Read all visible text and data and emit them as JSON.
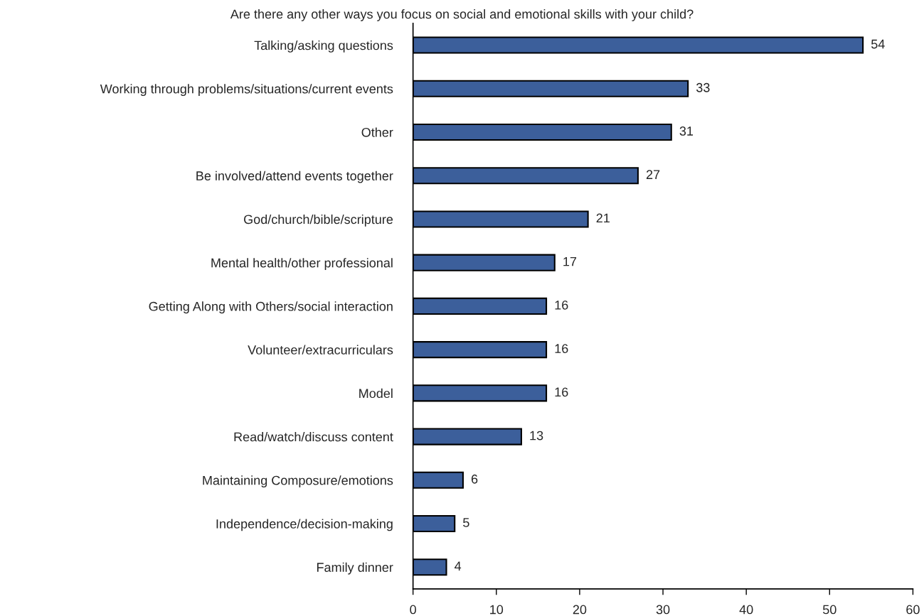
{
  "chart_data": {
    "type": "bar",
    "orientation": "horizontal",
    "title": "Are there any other ways you focus on social and emotional skills with your child?",
    "categories": [
      "Talking/asking questions",
      "Working through problems/situations/current events",
      "Other",
      "Be involved/attend events together",
      "God/church/bible/scripture",
      "Mental health/other professional",
      "Getting Along with Others/social interaction",
      "Volunteer/extracurriculars",
      "Model",
      "Read/watch/discuss content",
      "Maintaining Composure/emotions",
      "Independence/decision-making",
      "Family dinner"
    ],
    "values": [
      54,
      33,
      31,
      27,
      21,
      17,
      16,
      16,
      16,
      13,
      6,
      5,
      4
    ],
    "color": "#3c5f9b",
    "xlim": [
      0,
      60
    ],
    "xticks": [
      0,
      10,
      20,
      30,
      40,
      50,
      60
    ],
    "data_labels": true,
    "grid": false
  }
}
